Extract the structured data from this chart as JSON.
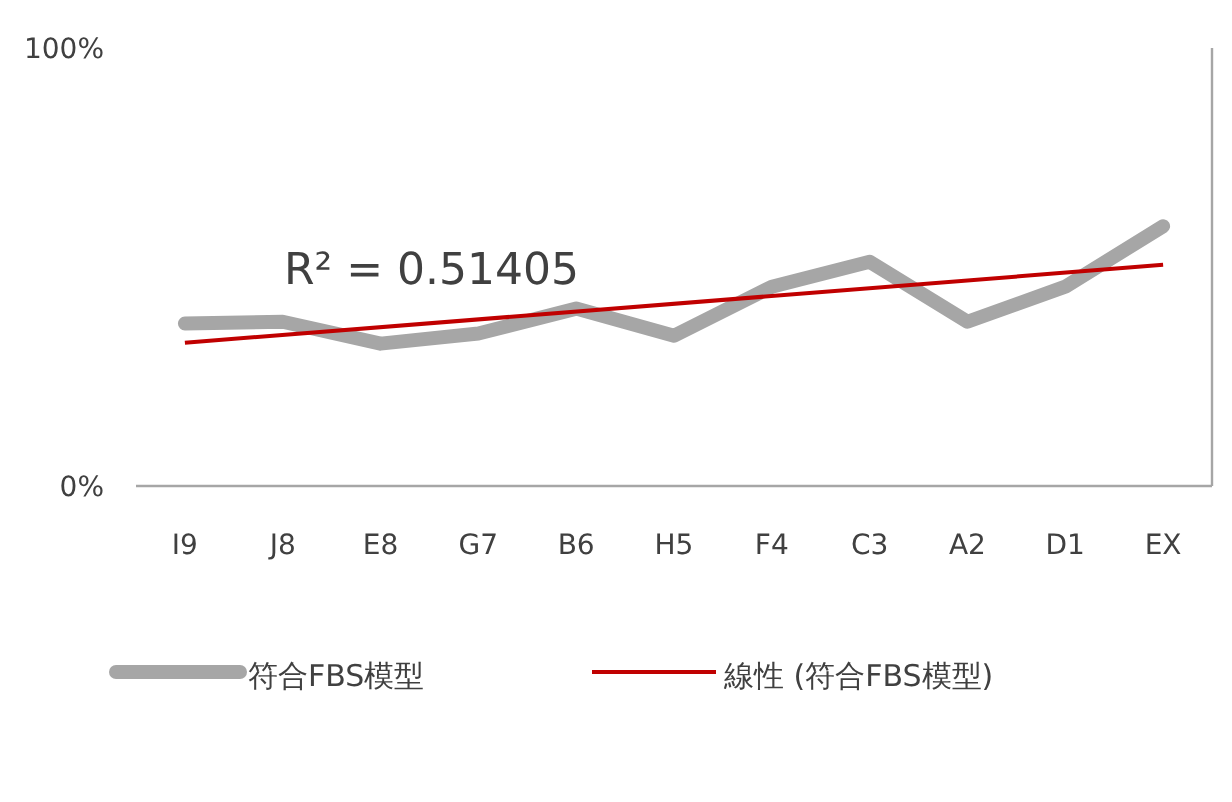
{
  "chart_data": {
    "type": "line",
    "categories": [
      "I9",
      "J8",
      "E8",
      "G7",
      "B6",
      "H5",
      "F4",
      "C3",
      "A2",
      "D1",
      "EX"
    ],
    "series": [
      {
        "name": "符合FBS模型",
        "color": "#a6a6a6",
        "values": [
          37.1,
          37.5,
          32.5,
          34.8,
          40.5,
          34.3,
          45.5,
          51.2,
          37.5,
          45.5,
          59.3
        ]
      },
      {
        "name": "線性 (符合FBS模型)",
        "color": "#c00000",
        "x": [
          "I9",
          "EX"
        ],
        "values": [
          32.7,
          50.5
        ]
      }
    ],
    "ylim": [
      0,
      100
    ],
    "yticks": [
      {
        "value": 0,
        "label": "0%"
      },
      {
        "value": 100,
        "label": "100%"
      }
    ],
    "annotations": [
      "R² = 0.51405"
    ],
    "legend": "bottom",
    "grid": false
  }
}
